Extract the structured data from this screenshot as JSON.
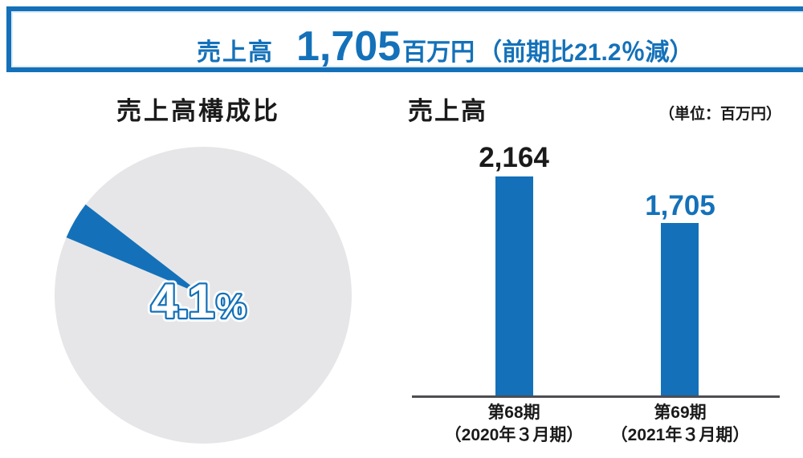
{
  "colors": {
    "primary_blue": "#1471B9",
    "pie_gray": "#E6E6E8",
    "text_black": "#1A1A1A",
    "axis_gray": "#4D4D53",
    "background": "#FFFFFF"
  },
  "header": {
    "label": "売上高",
    "value": "1,705",
    "unit": "百万円",
    "note": "（前期比21.2％減）"
  },
  "pie_chart": {
    "title": "売上高構成比",
    "share_value": "4.1",
    "percent_sign": "%"
  },
  "bar_chart": {
    "title": "売上高",
    "unit_note": "（単位：百万円）",
    "bars": [
      {
        "value_label": "2,164",
        "period": "第68期",
        "fiscal": "（2020年３月期）"
      },
      {
        "value_label": "1,705",
        "period": "第69期",
        "fiscal": "（2021年３月期）"
      }
    ]
  },
  "chart_data": [
    {
      "type": "pie",
      "title": "売上高構成比",
      "values": [
        4.1,
        95.9
      ],
      "labels": [
        "4.1%",
        ""
      ],
      "colors": [
        "#1471B9",
        "#E6E6E8"
      ],
      "annotation": "4.1%",
      "legend": "none"
    },
    {
      "type": "bar",
      "title": "売上高",
      "unit": "百万円",
      "categories": [
        "第68期（2020年３月期）",
        "第69期（2021年３月期）"
      ],
      "values": [
        2164,
        1705
      ],
      "data_labels": [
        "2,164",
        "1,705"
      ],
      "data_label_colors": [
        "#1A1A1A",
        "#1471B9"
      ],
      "bar_color": "#1471B9",
      "ylim": [
        0,
        2400
      ],
      "grid": "off",
      "legend": "none"
    }
  ]
}
